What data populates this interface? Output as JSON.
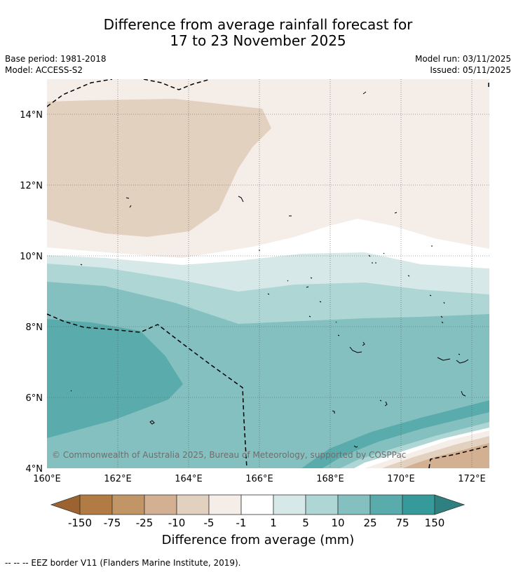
{
  "header": {
    "title_line1": "Difference from average rainfall forecast for",
    "title_line2": "17 to 23 November 2025",
    "base_period": "Base period: 1981-2018",
    "model": "Model: ACCESS-S2",
    "model_run": "Model run: 03/11/2025",
    "issued": "Issued: 05/11/2025"
  },
  "map": {
    "lon_range": [
      160,
      172.5
    ],
    "lat_range": [
      4,
      15
    ],
    "x_ticks": [
      {
        "value": 160,
        "label": "160°E"
      },
      {
        "value": 162,
        "label": "162°E"
      },
      {
        "value": 164,
        "label": "164°E"
      },
      {
        "value": 166,
        "label": "166°E"
      },
      {
        "value": 168,
        "label": "168°E"
      },
      {
        "value": 170,
        "label": "170°E"
      },
      {
        "value": 172,
        "label": "172°E"
      }
    ],
    "y_ticks": [
      {
        "value": 4,
        "label": "4°N"
      },
      {
        "value": 6,
        "label": "6°N"
      },
      {
        "value": 8,
        "label": "8°N"
      },
      {
        "value": 10,
        "label": "10°N"
      },
      {
        "value": 12,
        "label": "12°N"
      },
      {
        "value": 14,
        "label": "14°N"
      }
    ],
    "copyright": "© Commonwealth of Australia 2025, Bureau of Meteorology, supported by COSPPac",
    "colors": {
      "tan_light": "#e3d1c0",
      "cream": "#f5ede8",
      "white": "#ffffff",
      "teal_1": "#d6e9e8",
      "teal_2": "#aed6d5",
      "teal_3": "#85c0c0",
      "teal_4": "#5aabab",
      "tan_mid": "#d2b091"
    }
  },
  "legend": {
    "title": "Difference from average (mm)",
    "tick_labels": [
      "-150",
      "-75",
      "-25",
      "-10",
      "-5",
      "-1",
      "1",
      "5",
      "10",
      "25",
      "75",
      "150"
    ],
    "colors": [
      "#9c6330",
      "#b27b43",
      "#c29566",
      "#d2b091",
      "#e3d1c0",
      "#f5ede8",
      "#ffffff",
      "#d6e9e8",
      "#aed6d5",
      "#85c0c0",
      "#5aabab",
      "#36999a",
      "#2f8181"
    ]
  },
  "footer": {
    "eez_note": "--  --  -- EEZ border V11 (Flanders Marine Institute, 2019)."
  }
}
